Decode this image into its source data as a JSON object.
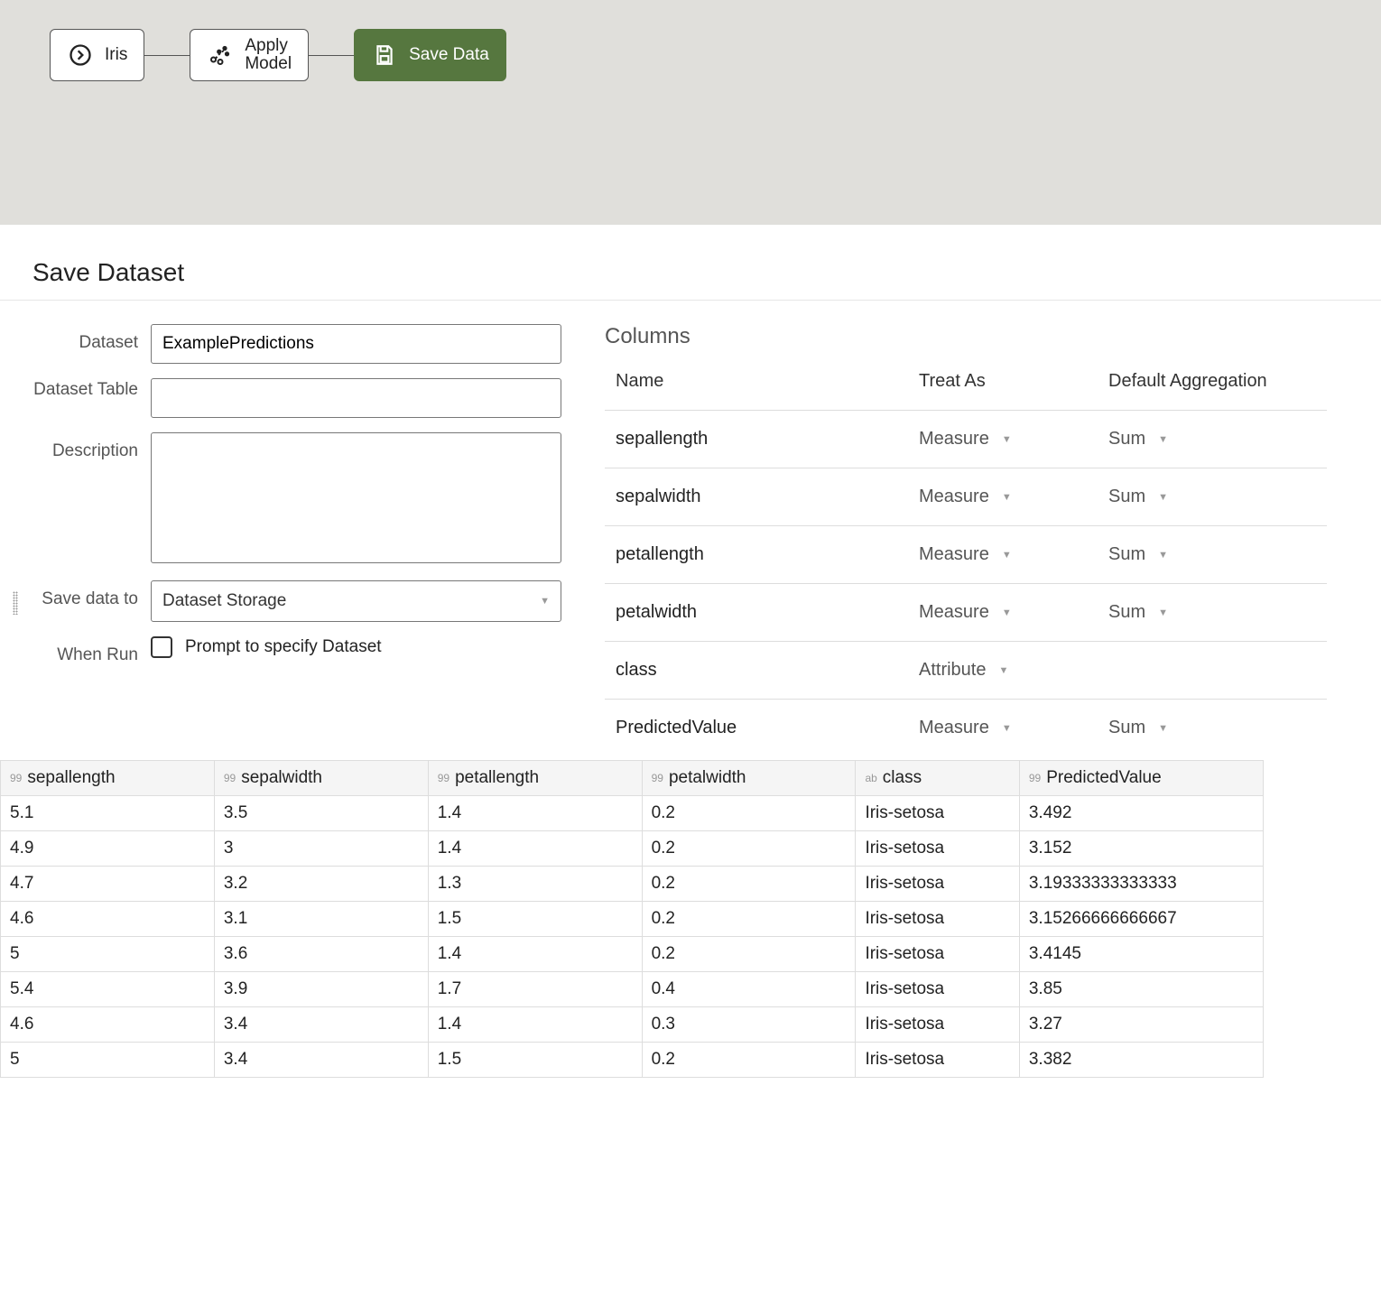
{
  "flow": {
    "nodes": [
      {
        "id": "iris",
        "label": "Iris",
        "icon": "circle-arrow"
      },
      {
        "id": "apply-model",
        "label_line1": "Apply",
        "label_line2": "Model",
        "icon": "scatter"
      },
      {
        "id": "save-data",
        "label": "Save Data",
        "icon": "save"
      }
    ]
  },
  "panel": {
    "title": "Save Dataset",
    "labels": {
      "dataset": "Dataset",
      "dataset_table": "Dataset Table",
      "description": "Description",
      "save_to": "Save data to",
      "when_run": "When Run",
      "prompt": "Prompt to specify Dataset"
    },
    "values": {
      "dataset": "ExamplePredictions",
      "dataset_table": "",
      "description": "",
      "save_to": "Dataset Storage",
      "prompt_checked": false
    }
  },
  "columns": {
    "title": "Columns",
    "headers": {
      "name": "Name",
      "treat": "Treat As",
      "agg": "Default Aggregation"
    },
    "rows": [
      {
        "name": "sepallength",
        "treat": "Measure",
        "agg": "Sum"
      },
      {
        "name": "sepalwidth",
        "treat": "Measure",
        "agg": "Sum"
      },
      {
        "name": "petallength",
        "treat": "Measure",
        "agg": "Sum"
      },
      {
        "name": "petalwidth",
        "treat": "Measure",
        "agg": "Sum"
      },
      {
        "name": "class",
        "treat": "Attribute",
        "agg": ""
      },
      {
        "name": "PredictedValue",
        "treat": "Measure",
        "agg": "Sum"
      }
    ]
  },
  "preview": {
    "columns": [
      {
        "type": "99",
        "name": "sepallength"
      },
      {
        "type": "99",
        "name": "sepalwidth"
      },
      {
        "type": "99",
        "name": "petallength"
      },
      {
        "type": "99",
        "name": "petalwidth"
      },
      {
        "type": "ab",
        "name": "class"
      },
      {
        "type": "99",
        "name": "PredictedValue"
      }
    ],
    "rows": [
      [
        "5.1",
        "3.5",
        "1.4",
        "0.2",
        "Iris-setosa",
        "3.492"
      ],
      [
        "4.9",
        "3",
        "1.4",
        "0.2",
        "Iris-setosa",
        "3.152"
      ],
      [
        "4.7",
        "3.2",
        "1.3",
        "0.2",
        "Iris-setosa",
        "3.19333333333333"
      ],
      [
        "4.6",
        "3.1",
        "1.5",
        "0.2",
        "Iris-setosa",
        "3.15266666666667"
      ],
      [
        "5",
        "3.6",
        "1.4",
        "0.2",
        "Iris-setosa",
        "3.4145"
      ],
      [
        "5.4",
        "3.9",
        "1.7",
        "0.4",
        "Iris-setosa",
        "3.85"
      ],
      [
        "4.6",
        "3.4",
        "1.4",
        "0.3",
        "Iris-setosa",
        "3.27"
      ],
      [
        "5",
        "3.4",
        "1.5",
        "0.2",
        "Iris-setosa",
        "3.382"
      ]
    ]
  },
  "colors": {
    "canvas_bg": "#e0dfdb",
    "active_node": "#56773f",
    "border": "#dddddd"
  }
}
